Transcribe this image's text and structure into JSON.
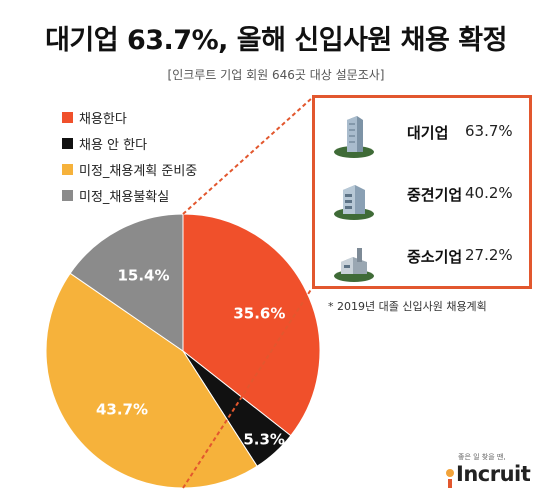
{
  "title": "대기업 63.7%, 올해 신입사원 채용 확정",
  "subtitle": "[인크루트 기업 회원 646곳 대상 설문조사]",
  "chart_data": {
    "type": "pie",
    "categories": [
      "채용한다",
      "채용 안 한다",
      "미정_채용계획 준비중",
      "미정_채용불확실"
    ],
    "values": [
      35.6,
      5.3,
      43.7,
      15.4
    ],
    "labels": [
      "35.6%",
      "5.3%",
      "43.7%",
      "15.4%"
    ],
    "colors": [
      "#f0502b",
      "#111111",
      "#f6b23b",
      "#8b8b8b"
    ],
    "legend_position": "top-left"
  },
  "panel": {
    "items": [
      {
        "name": "대기업",
        "value": "63.7%",
        "icon": "skyscraper-icon"
      },
      {
        "name": "중견기업",
        "value": "40.2%",
        "icon": "office-building-icon"
      },
      {
        "name": "중소기업",
        "value": "27.2%",
        "icon": "factory-icon"
      }
    ],
    "border_color": "#e2572e"
  },
  "footnote": "* 2019년 대졸 신입사원 채용계획",
  "logo": {
    "tagline": "좋은 일 찾을 땐,",
    "wordmark": "Incruit"
  }
}
